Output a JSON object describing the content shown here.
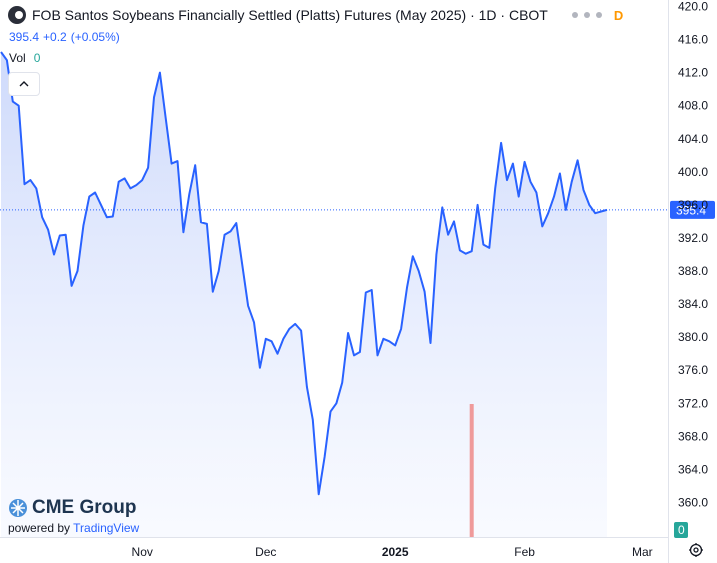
{
  "header": {
    "title": "FOB Santos Soybeans Financially Settled (Platts) Futures (May 2025) · 1D · CBOT",
    "badge": "D",
    "price": "395.4",
    "change": "+0.2",
    "change_pct": "(+0.05%)",
    "vol_label": "Vol",
    "vol_value": "0"
  },
  "branding": {
    "logo": "CME Group",
    "powered_prefix": "powered by",
    "powered_brand": "TradingView"
  },
  "icons": {
    "symbol": "symbol-logo-icon",
    "collapse": "chevron-up-icon",
    "settings": "settings-icon",
    "logo": "cme-globe-icon"
  },
  "chart_data": {
    "type": "area",
    "title": "FOB Santos Soybeans Financially Settled (Platts) Futures (May 2025) · 1D · CBOT",
    "xlabel": "",
    "ylabel": "",
    "grid": false,
    "ylim": [
      356,
      420
    ],
    "yticks": [
      420.0,
      416.0,
      412.0,
      408.0,
      404.0,
      400.0,
      396.0,
      392.0,
      388.0,
      384.0,
      380.0,
      376.0,
      372.0,
      368.0,
      364.0,
      360.0
    ],
    "ytick_labels": [
      "420.0",
      "416.0",
      "412.0",
      "408.0",
      "404.0",
      "400.0",
      "396.0",
      "392.0",
      "388.0",
      "384.0",
      "380.0",
      "376.0",
      "372.0",
      "368.0",
      "364.0",
      "360.0"
    ],
    "xticks": [
      {
        "label": "Nov",
        "index": 24
      },
      {
        "label": "Dec",
        "index": 45
      },
      {
        "label": "2025",
        "index": 67
      },
      {
        "label": "Feb",
        "index": 89
      },
      {
        "label": "Mar",
        "index": 109
      }
    ],
    "last_price": 395.4,
    "last_price_label": "395.4",
    "volume_scale_label": "0",
    "colors": {
      "line": "#2962ff",
      "fill_top": "#c9d6fb",
      "fill_bottom": "#f4f7ff",
      "volume": "#ef9a9a",
      "price_label": "#2962ff",
      "volume_label": "#26a69a"
    },
    "series": [
      {
        "values": [
          414.5,
          413.5,
          408.5,
          408.0,
          398.5,
          399.0,
          398.0,
          394.5,
          393.0,
          390.0,
          392.3,
          392.4,
          386.2,
          388.0,
          393.5,
          397.0,
          397.5,
          396.0,
          394.5,
          394.6,
          398.8,
          399.2,
          398.0,
          398.4,
          399.0,
          400.5,
          409.0,
          412.0,
          406.5,
          401.0,
          401.3,
          392.7,
          397.3,
          400.8,
          393.9,
          393.7,
          385.5,
          388.0,
          392.4,
          392.8,
          393.8,
          388.8,
          383.8,
          381.8,
          376.3,
          379.8,
          379.5,
          378.0,
          379.8,
          381.0,
          381.6,
          380.8,
          374.0,
          370.0,
          361.0,
          365.5,
          371.0,
          372.0,
          374.5,
          380.5,
          377.8,
          378.2,
          385.4,
          385.7,
          377.8,
          379.8,
          379.5,
          379.0,
          381.0,
          386.0,
          389.8,
          388.0,
          385.5,
          379.3,
          390.0,
          395.7,
          392.4,
          394.0,
          390.5,
          390.1,
          390.4,
          396.0,
          391.2,
          390.8,
          398.0,
          403.5,
          399.0,
          401.0,
          397.0,
          401.2,
          398.8,
          397.5,
          393.4,
          395.0,
          397.0,
          399.8,
          395.4,
          398.8,
          401.4,
          397.8,
          396.0,
          395.0,
          395.2,
          395.4
        ]
      }
    ],
    "volume": [
      {
        "index": 80,
        "value": 1
      }
    ]
  }
}
